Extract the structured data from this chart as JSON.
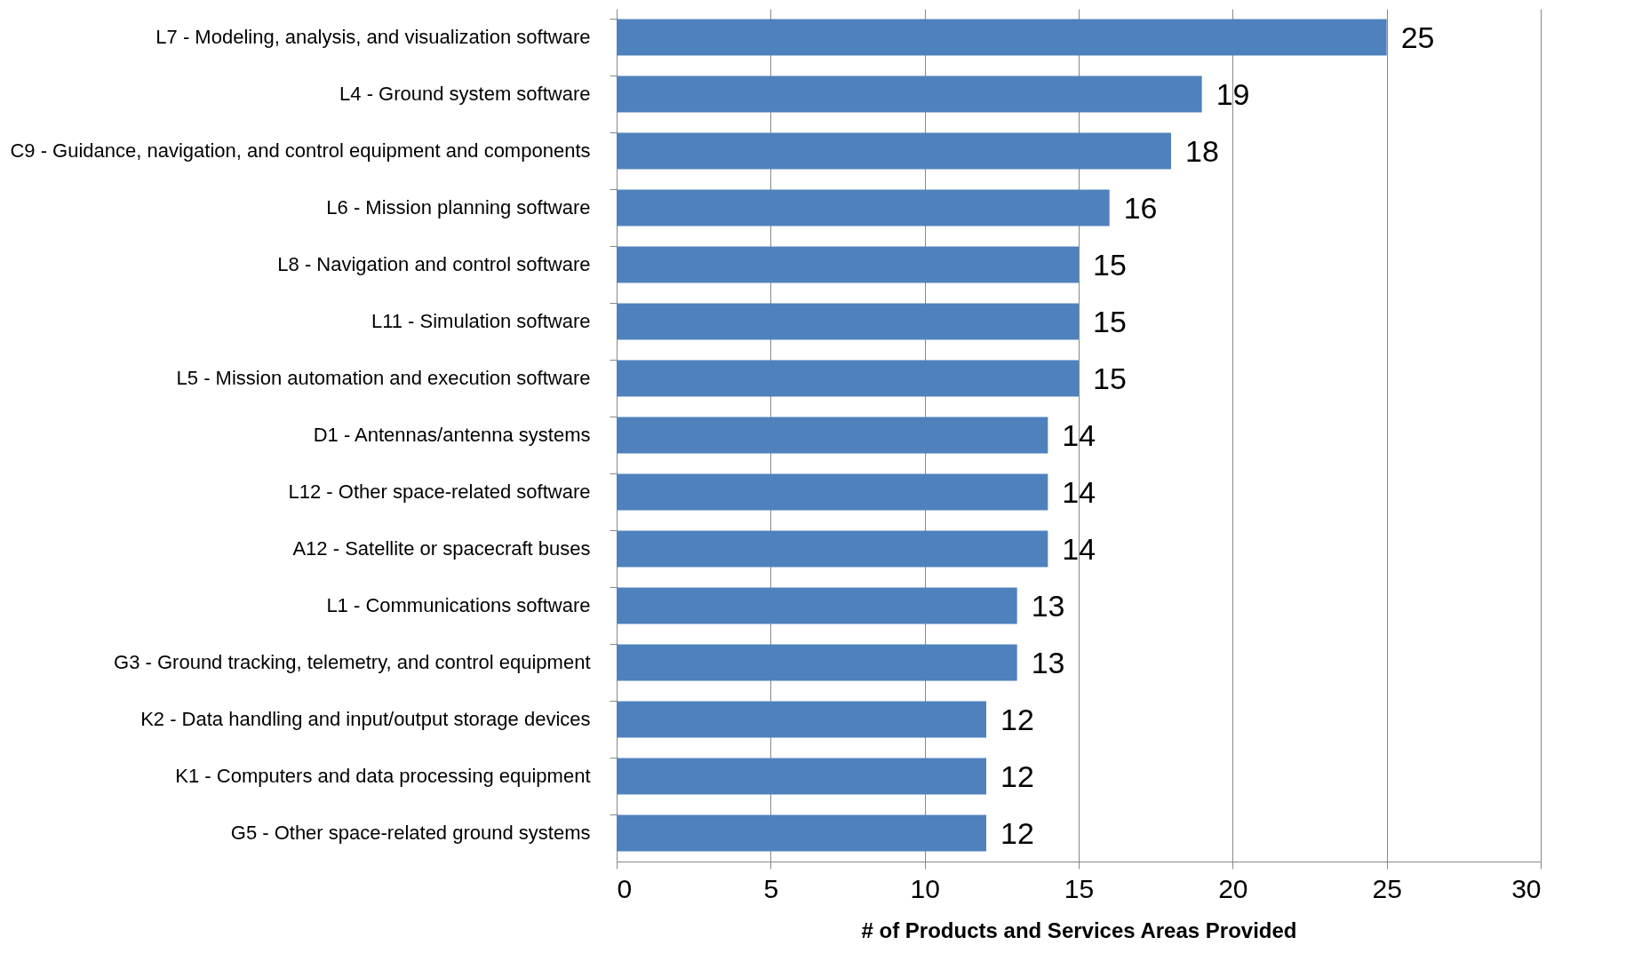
{
  "chart_data": {
    "type": "bar",
    "orientation": "horizontal",
    "categories": [
      "L7 - Modeling, analysis, and visualization software",
      "L4 - Ground system software",
      "C9 - Guidance, navigation, and control equipment and components",
      "L6 - Mission planning software",
      "L8 - Navigation and control software",
      "L11 - Simulation software",
      "L5 - Mission automation and execution software",
      "D1 - Antennas/antenna systems",
      "L12 - Other space-related software",
      "A12 - Satellite or spacecraft buses",
      "L1 - Communications software",
      "G3 - Ground tracking, telemetry, and control equipment",
      "K2 - Data handling and input/output storage devices",
      "K1 - Computers and data processing equipment",
      "G5 - Other space-related ground systems"
    ],
    "values": [
      25,
      19,
      18,
      16,
      15,
      15,
      15,
      14,
      14,
      14,
      13,
      13,
      12,
      12,
      12
    ],
    "color": "#4f81bd",
    "xlim": [
      0,
      30
    ],
    "xticks": [
      0,
      5,
      10,
      15,
      20,
      25,
      30
    ],
    "xlabel": "# of Products and Services Areas Provided",
    "grid": "x",
    "data_labels": true
  }
}
